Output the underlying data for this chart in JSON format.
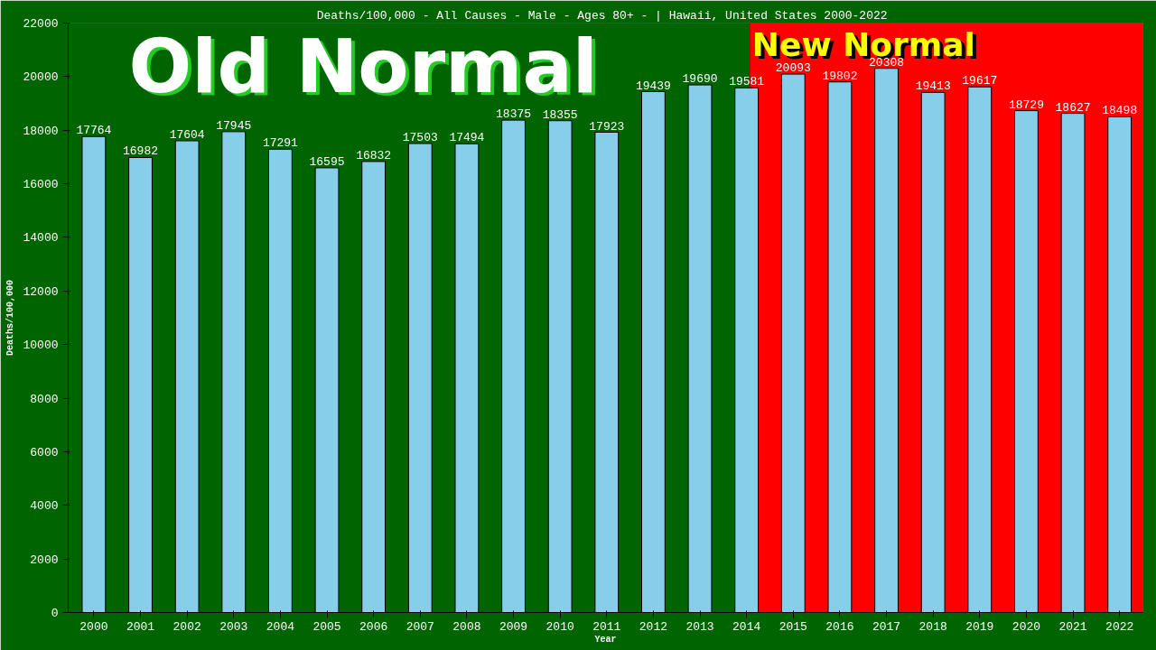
{
  "chart_data": {
    "type": "bar",
    "title": "Deaths/100,000 - All Causes - Male - Ages 80+ -  | Hawaii, United States 2000-2022",
    "xlabel": "Year",
    "ylabel": "Deaths/100,000",
    "x": [
      2000,
      2001,
      2002,
      2003,
      2004,
      2005,
      2006,
      2007,
      2008,
      2009,
      2010,
      2011,
      2012,
      2013,
      2014,
      2015,
      2016,
      2017,
      2018,
      2019,
      2020,
      2021,
      2022
    ],
    "values": [
      17764,
      16982,
      17604,
      17945,
      17291,
      16595,
      16832,
      17503,
      17494,
      18375,
      18355,
      17923,
      19439,
      19690,
      19581,
      20093,
      19802,
      20308,
      19413,
      19617,
      18729,
      18627,
      18498
    ],
    "color": "#87ceeb",
    "data_labels": true,
    "xlim": [
      1999.45,
      2022.5
    ],
    "xticks": [
      2000,
      2001,
      2002,
      2003,
      2004,
      2005,
      2006,
      2007,
      2008,
      2009,
      2010,
      2011,
      2012,
      2013,
      2014,
      2015,
      2016,
      2017,
      2018,
      2019,
      2020,
      2021,
      2022
    ],
    "ylim": [
      0,
      22000
    ],
    "yticks": [
      0,
      2000,
      4000,
      6000,
      8000,
      10000,
      12000,
      14000,
      16000,
      18000,
      20000,
      22000
    ],
    "bands": [
      {
        "axis": "x",
        "from": 1999.45,
        "to": 2014.07,
        "label": "Old Normal",
        "color": "#006400"
      },
      {
        "axis": "x",
        "from": 2014.07,
        "to": 2022.5,
        "label": "New Normal",
        "color": "#ff0000"
      }
    ],
    "grid": false
  }
}
